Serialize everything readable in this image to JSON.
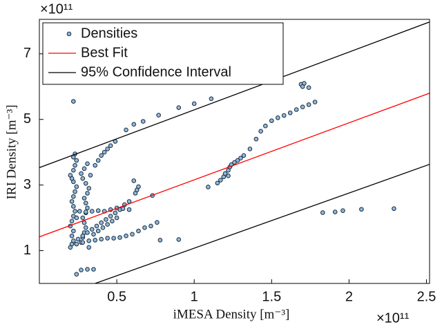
{
  "chart_data": {
    "type": "scatter",
    "xlabel": "iMESA Density [m⁻³]",
    "ylabel": "IRI Density [m⁻³]",
    "x_multiplier": "×10¹¹",
    "y_multiplier": "×10¹¹",
    "xlim": [
      0,
      2.52
    ],
    "ylim": [
      0,
      8.05
    ],
    "xticks": [
      0.5,
      1,
      1.5,
      2,
      2.5
    ],
    "yticks": [
      1,
      3,
      5,
      7
    ],
    "grid": false,
    "legend": "upper left",
    "series": [
      {
        "name": "Densities",
        "type": "scatter",
        "color": "#8fb8de",
        "edgecolor": "#1a2a3a",
        "x": [
          0.2,
          0.21,
          0.22,
          0.21,
          0.22,
          0.2,
          0.21,
          0.22,
          0.23,
          0.22,
          0.21,
          0.22,
          0.23,
          0.24,
          0.22,
          0.21,
          0.2,
          0.22,
          0.23,
          0.24,
          0.22,
          0.23,
          0.24,
          0.27,
          0.28,
          0.29,
          0.3,
          0.29,
          0.28,
          0.3,
          0.31,
          0.3,
          0.29,
          0.31,
          0.32,
          0.3,
          0.28,
          0.27,
          0.29,
          0.31,
          0.33,
          0.32,
          0.25,
          0.28,
          0.31,
          0.34,
          0.37,
          0.4,
          0.43,
          0.46,
          0.49,
          0.52,
          0.35,
          0.38,
          0.41,
          0.44,
          0.47,
          0.5,
          0.26,
          0.3,
          0.34,
          0.38,
          0.42,
          0.46,
          0.5,
          0.54,
          0.58,
          0.24,
          0.28,
          0.32,
          0.36,
          0.4,
          0.44,
          0.48,
          0.52,
          0.56,
          0.6,
          0.64,
          0.68,
          0.72,
          0.36,
          0.38,
          0.4,
          0.42,
          0.44,
          0.46,
          0.49,
          0.56,
          0.61,
          0.67,
          0.77,
          0.9,
          1.0,
          1.11,
          0.22,
          0.61,
          0.63,
          0.64,
          0.62,
          0.73,
          0.76,
          0.78,
          0.9,
          0.55,
          0.58,
          1.09,
          1.15,
          1.17,
          1.19,
          1.2,
          1.22,
          1.23,
          1.22,
          1.24,
          1.26,
          1.28,
          1.3,
          1.32,
          1.36,
          1.4,
          1.43,
          1.46,
          1.5,
          1.54,
          1.58,
          1.62,
          1.66,
          1.7,
          1.74,
          1.78,
          1.69,
          1.71,
          1.74,
          1.7,
          1.83,
          1.91,
          1.96,
          2.08,
          2.29,
          0.24,
          0.27,
          0.31,
          0.35
        ],
        "values": [
          1.1,
          1.2,
          1.3,
          1.45,
          1.6,
          1.75,
          1.9,
          2.05,
          2.2,
          2.35,
          2.5,
          2.65,
          2.8,
          2.95,
          3.1,
          3.2,
          3.3,
          3.45,
          3.6,
          3.75,
          3.85,
          3.95,
          2.0,
          1.25,
          1.4,
          1.55,
          1.7,
          1.85,
          2.0,
          2.15,
          2.3,
          2.45,
          2.6,
          2.75,
          2.9,
          3.05,
          3.2,
          3.35,
          3.5,
          3.65,
          3.3,
          1.1,
          1.35,
          1.45,
          1.55,
          1.65,
          1.75,
          1.85,
          1.95,
          2.05,
          2.15,
          2.25,
          1.5,
          1.6,
          1.7,
          1.8,
          1.9,
          2.0,
          2.2,
          2.18,
          2.2,
          2.22,
          2.2,
          2.25,
          2.3,
          2.28,
          2.25,
          1.2,
          1.25,
          1.3,
          1.32,
          1.35,
          1.38,
          1.38,
          1.4,
          1.45,
          1.5,
          1.6,
          1.7,
          1.75,
          3.6,
          3.75,
          3.9,
          4.0,
          4.1,
          4.2,
          4.33,
          4.68,
          4.85,
          4.94,
          5.13,
          5.36,
          5.48,
          5.63,
          5.55,
          3.13,
          2.85,
          2.95,
          2.75,
          2.68,
          1.86,
          1.32,
          1.34,
          2.4,
          2.5,
          2.94,
          3.06,
          3.15,
          3.25,
          3.35,
          3.45,
          3.55,
          3.28,
          3.62,
          3.69,
          3.75,
          3.82,
          3.9,
          4.1,
          4.4,
          4.64,
          4.8,
          4.96,
          5.05,
          5.12,
          5.2,
          5.3,
          5.38,
          5.45,
          5.53,
          6.07,
          6.1,
          5.97,
          6.0,
          2.16,
          2.18,
          2.22,
          2.26,
          2.28,
          0.28,
          0.41,
          0.43,
          0.43
        ]
      },
      {
        "name": "Best Fit",
        "type": "line",
        "color": "#ff0000",
        "x": [
          0,
          2.52
        ],
        "values": [
          1.42,
          5.8
        ]
      },
      {
        "name": "95% Confidence Interval",
        "type": "line",
        "color": "#000000",
        "x": [
          0,
          2.52,
          null,
          0.36,
          2.52
        ],
        "values": [
          3.53,
          7.97,
          null,
          0,
          3.63
        ]
      }
    ]
  }
}
